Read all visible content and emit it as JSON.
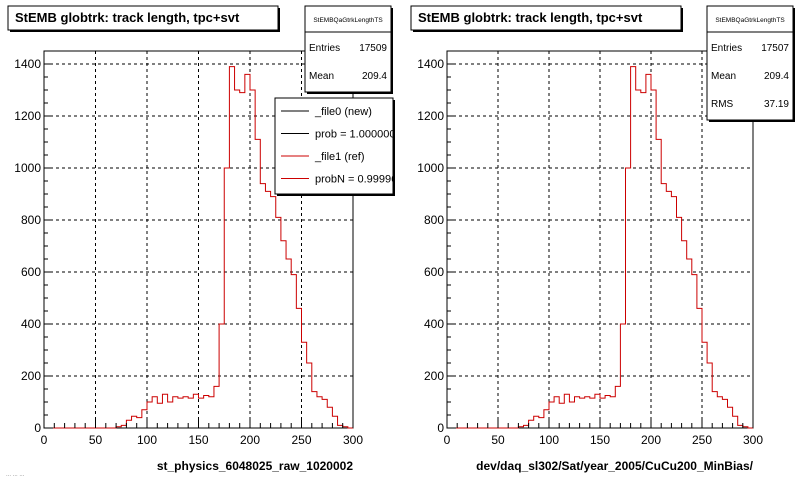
{
  "chart_data": [
    {
      "type": "histogram-step",
      "title": "StEMB globtrk: track length, tpc+svt",
      "xlabel": "st_physics_6048025_raw_1020002",
      "xlim": [
        0,
        300
      ],
      "ylim": [
        0,
        1450
      ],
      "xticks": [
        0,
        50,
        100,
        150,
        200,
        250,
        300
      ],
      "yticks": [
        0,
        200,
        400,
        600,
        800,
        1000,
        1200,
        1400
      ],
      "grid": true,
      "stats": {
        "name": "StEMBQaGtrkLengthTS",
        "rows": [
          {
            "label": "Entries",
            "value": "17509"
          },
          {
            "label": "Mean",
            "value": "209.4"
          }
        ]
      },
      "legend": {
        "placement": "top-right",
        "entries": [
          {
            "label": "_file0 (new)",
            "color": "#000000"
          },
          {
            "label": "prob = 1.000000",
            "color": "#000000"
          },
          {
            "label": "_file1 (ref)",
            "color": "#cc0000"
          },
          {
            "label": "probN = 0.999968",
            "color": "#cc0000"
          }
        ]
      },
      "bin_edges": [
        0,
        5,
        10,
        15,
        20,
        25,
        30,
        35,
        40,
        45,
        50,
        55,
        60,
        65,
        70,
        75,
        80,
        85,
        90,
        95,
        100,
        105,
        110,
        115,
        120,
        125,
        130,
        135,
        140,
        145,
        150,
        155,
        160,
        165,
        170,
        175,
        180,
        185,
        190,
        195,
        200,
        205,
        210,
        215,
        220,
        225,
        230,
        235,
        240,
        245,
        250,
        255,
        260,
        265,
        270,
        275,
        280,
        285,
        290,
        295,
        300
      ],
      "series": [
        {
          "color": "#cc0000",
          "values": [
            0,
            0,
            0,
            0,
            0,
            0,
            0,
            0,
            0,
            0,
            0,
            0,
            0,
            0,
            5,
            10,
            30,
            45,
            40,
            70,
            100,
            120,
            95,
            130,
            100,
            120,
            115,
            120,
            115,
            130,
            115,
            125,
            120,
            160,
            400,
            1000,
            1390,
            1300,
            1290,
            1360,
            1300,
            1110,
            940,
            910,
            890,
            810,
            720,
            650,
            590,
            460,
            330,
            250,
            140,
            120,
            110,
            80,
            45,
            10,
            5,
            0
          ]
        }
      ]
    },
    {
      "type": "histogram-step",
      "title": "StEMB globtrk: track length, tpc+svt",
      "xlabel": "dev/daq_sl302/Sat/year_2005/CuCu200_MinBias/",
      "xlim": [
        0,
        300
      ],
      "ylim": [
        0,
        1450
      ],
      "xticks": [
        0,
        50,
        100,
        150,
        200,
        250,
        300
      ],
      "yticks": [
        0,
        200,
        400,
        600,
        800,
        1000,
        1200,
        1400
      ],
      "grid": true,
      "stats": {
        "name": "StEMBQaGtrkLengthTS",
        "rows": [
          {
            "label": "Entries",
            "value": "17507"
          },
          {
            "label": "Mean",
            "value": "209.4"
          },
          {
            "label": "RMS",
            "value": "37.19"
          }
        ]
      },
      "bin_edges": [
        0,
        5,
        10,
        15,
        20,
        25,
        30,
        35,
        40,
        45,
        50,
        55,
        60,
        65,
        70,
        75,
        80,
        85,
        90,
        95,
        100,
        105,
        110,
        115,
        120,
        125,
        130,
        135,
        140,
        145,
        150,
        155,
        160,
        165,
        170,
        175,
        180,
        185,
        190,
        195,
        200,
        205,
        210,
        215,
        220,
        225,
        230,
        235,
        240,
        245,
        250,
        255,
        260,
        265,
        270,
        275,
        280,
        285,
        290,
        295,
        300
      ],
      "series": [
        {
          "color": "#cc0000",
          "values": [
            0,
            0,
            0,
            0,
            0,
            0,
            0,
            0,
            0,
            0,
            0,
            0,
            0,
            0,
            5,
            10,
            30,
            45,
            40,
            70,
            100,
            120,
            95,
            130,
            100,
            120,
            115,
            120,
            115,
            130,
            115,
            125,
            120,
            160,
            400,
            1000,
            1390,
            1300,
            1290,
            1360,
            1300,
            1110,
            940,
            910,
            890,
            810,
            720,
            650,
            590,
            460,
            330,
            250,
            140,
            120,
            110,
            80,
            45,
            10,
            5,
            0
          ]
        }
      ]
    }
  ],
  "footer_text": "... ... ..."
}
